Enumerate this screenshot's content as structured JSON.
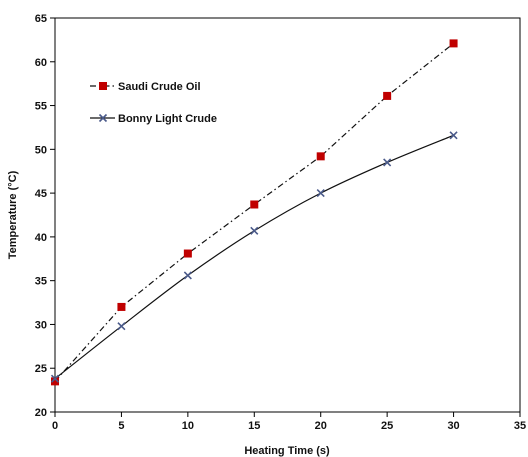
{
  "chart_data": {
    "type": "line",
    "xlabel": "Heating Time (s)",
    "ylabel": "Temperature (°C)",
    "xlim": [
      0,
      35
    ],
    "ylim": [
      20,
      65
    ],
    "xticks": [
      0,
      5,
      10,
      15,
      20,
      25,
      30,
      35
    ],
    "yticks": [
      20,
      25,
      30,
      35,
      40,
      45,
      50,
      55,
      60,
      65
    ],
    "grid": false,
    "legend_position": "top-left",
    "series": [
      {
        "name": "Saudi Crude Oil",
        "x": [
          0,
          5,
          10,
          15,
          20,
          25,
          30
        ],
        "y": [
          23.5,
          32.0,
          38.1,
          43.7,
          49.2,
          56.1,
          62.1
        ],
        "marker": "square",
        "line_style": "dash-dot",
        "marker_color": "#c00000",
        "line_color": "#111111"
      },
      {
        "name": "Bonny Light Crude",
        "x": [
          0,
          5,
          10,
          15,
          20,
          25,
          30
        ],
        "y": [
          23.8,
          29.8,
          35.6,
          40.7,
          45.0,
          48.5,
          51.6
        ],
        "marker": "x",
        "line_style": "solid",
        "marker_color": "#4a5a8a",
        "line_color": "#111111"
      }
    ]
  }
}
